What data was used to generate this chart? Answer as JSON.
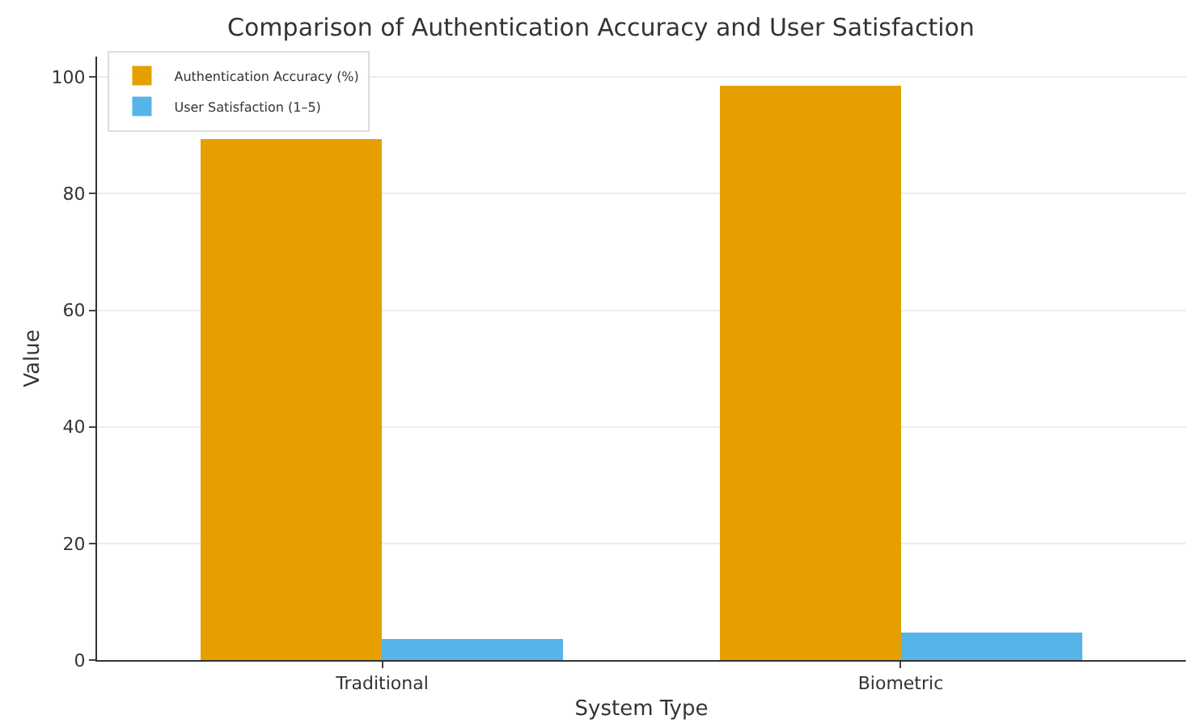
{
  "chart_data": {
    "type": "bar",
    "title": "Comparison of Authentication Accuracy and User Satisfaction",
    "xlabel": "System Type",
    "ylabel": "Value",
    "categories": [
      "Traditional",
      "Biometric"
    ],
    "series": [
      {
        "name": "Authentication Accuracy (%)",
        "color": "#e5a000",
        "values": [
          89.3,
          98.6
        ]
      },
      {
        "name": "User Satisfaction (1–5)",
        "color": "#56b4e9",
        "values": [
          3.5,
          4.7
        ]
      }
    ],
    "ylim": [
      0,
      103.5
    ],
    "yticks": [
      0,
      20,
      40,
      60,
      80,
      100
    ],
    "grid": "y",
    "legend": "top left"
  }
}
